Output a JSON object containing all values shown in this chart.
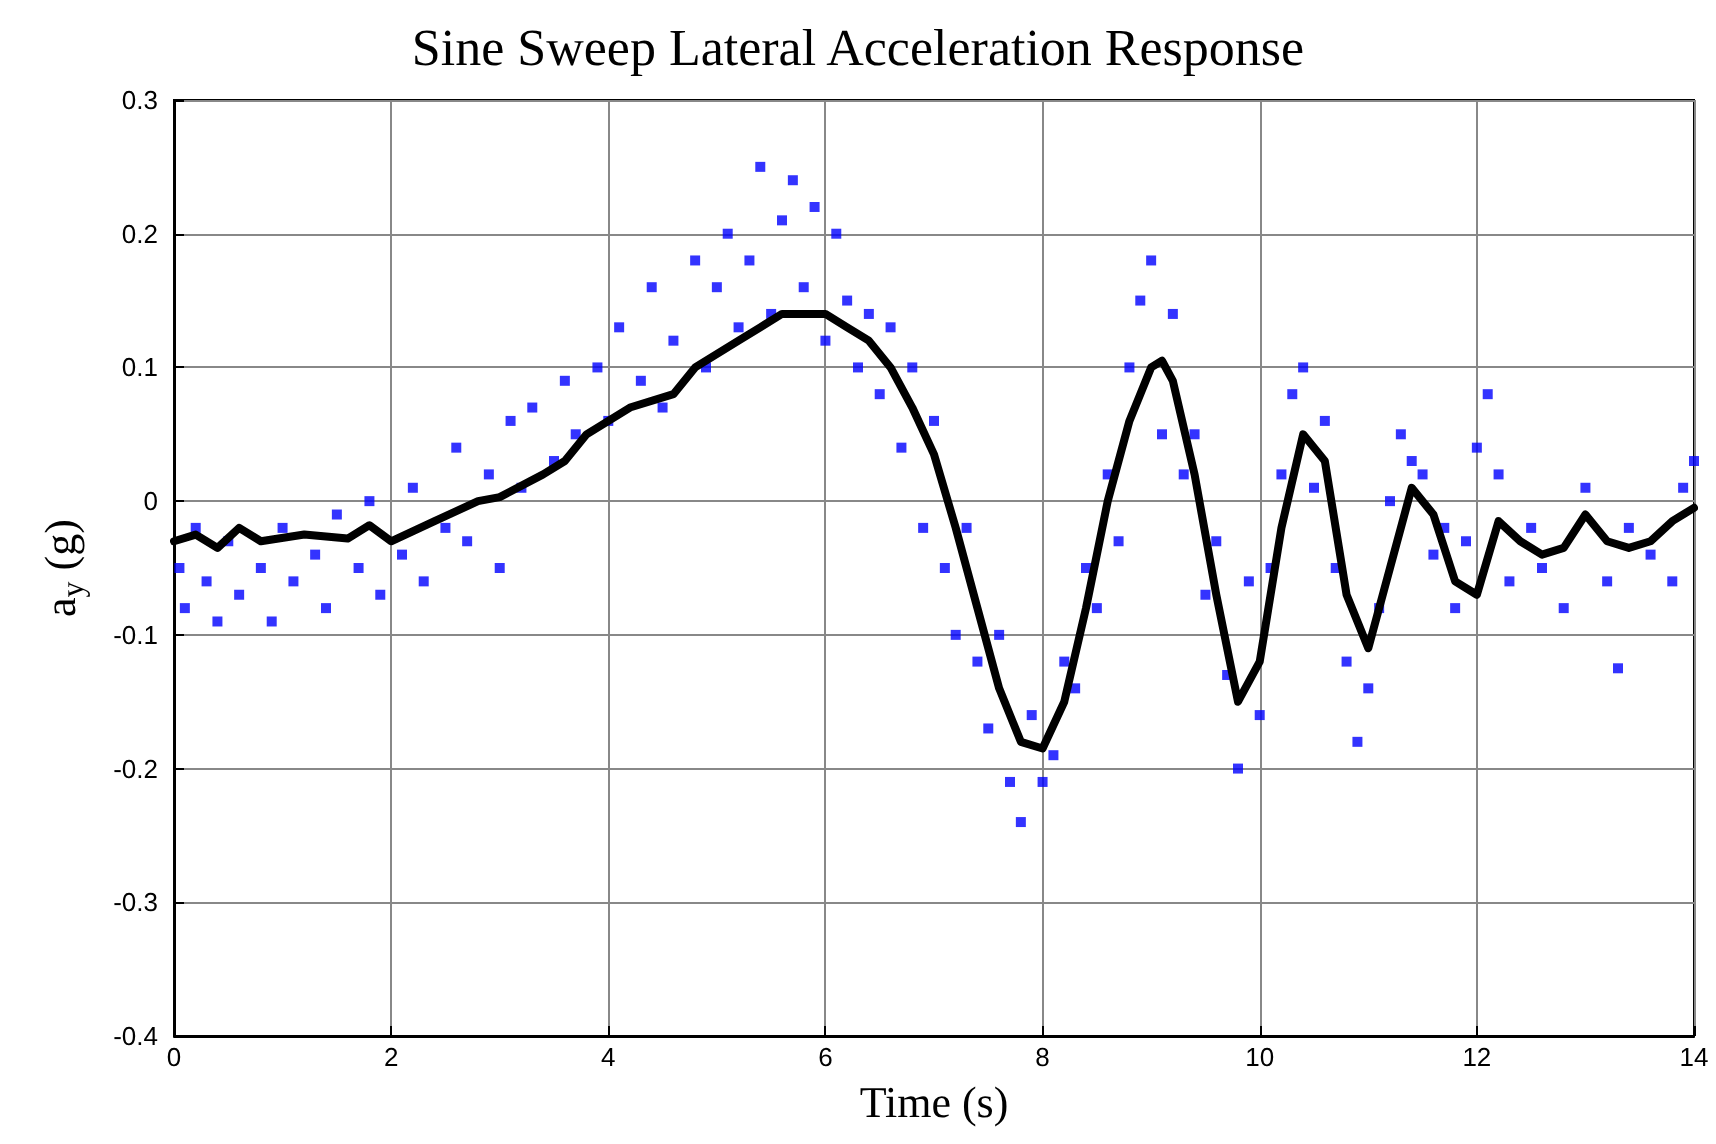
{
  "chart_data": {
    "type": "scatter",
    "title": "Sine Sweep Lateral Acceleration Response",
    "xlabel": "Time (s)",
    "ylabel": "a$_{y}$ (g)",
    "xlim": [
      0,
      14
    ],
    "xticks": [
      0,
      2,
      4,
      6,
      8,
      10,
      12,
      14
    ],
    "ylim": [
      -0.4,
      0.3
    ],
    "yticks": [
      -0.4,
      -0.3,
      -0.2,
      -0.1,
      0,
      0.1,
      0.2,
      0.3
    ],
    "grid": true,
    "series": [
      {
        "marker": "square",
        "color": "#0000ff",
        "x": [
          0.05,
          0.1,
          0.2,
          0.3,
          0.4,
          0.5,
          0.6,
          0.8,
          0.9,
          1.0,
          1.1,
          1.3,
          1.4,
          1.5,
          1.7,
          1.8,
          1.9,
          2.1,
          2.2,
          2.3,
          2.5,
          2.6,
          2.7,
          2.9,
          3.0,
          3.1,
          3.2,
          3.3,
          3.5,
          3.6,
          3.7,
          3.9,
          4.0,
          4.1,
          4.3,
          4.4,
          4.5,
          4.6,
          4.8,
          4.9,
          5.0,
          5.1,
          5.2,
          5.3,
          5.4,
          5.5,
          5.6,
          5.7,
          5.8,
          5.9,
          6.0,
          6.1,
          6.2,
          6.3,
          6.4,
          6.5,
          6.6,
          6.7,
          6.8,
          6.9,
          7.0,
          7.1,
          7.2,
          7.3,
          7.4,
          7.5,
          7.6,
          7.7,
          7.8,
          7.9,
          8.0,
          8.1,
          8.2,
          8.3,
          8.4,
          8.5,
          8.6,
          8.7,
          8.8,
          8.9,
          9.0,
          9.1,
          9.2,
          9.3,
          9.4,
          9.5,
          9.6,
          9.7,
          9.8,
          9.9,
          10.0,
          10.1,
          10.2,
          10.3,
          10.4,
          10.5,
          10.6,
          10.7,
          10.8,
          10.9,
          11.0,
          11.1,
          11.2,
          11.3,
          11.4,
          11.5,
          11.6,
          11.7,
          11.8,
          11.9,
          12.0,
          12.1,
          12.2,
          12.3,
          12.5,
          12.6,
          12.8,
          13.0,
          13.2,
          13.3,
          13.4,
          13.6,
          13.8,
          13.9,
          14.0
        ],
        "values": [
          -0.05,
          -0.08,
          -0.02,
          -0.06,
          -0.09,
          -0.03,
          -0.07,
          -0.05,
          -0.09,
          -0.02,
          -0.06,
          -0.04,
          -0.08,
          -0.01,
          -0.05,
          0,
          -0.07,
          -0.04,
          0.01,
          -0.06,
          -0.02,
          0.04,
          -0.03,
          0.02,
          -0.05,
          0.06,
          0.01,
          0.07,
          0.03,
          0.09,
          0.05,
          0.1,
          0.06,
          0.13,
          0.09,
          0.16,
          0.07,
          0.12,
          0.18,
          0.1,
          0.16,
          0.2,
          0.13,
          0.18,
          0.25,
          0.14,
          0.21,
          0.24,
          0.16,
          0.22,
          0.12,
          0.2,
          0.15,
          0.1,
          0.14,
          0.08,
          0.13,
          0.04,
          0.1,
          -0.02,
          0.06,
          -0.05,
          -0.1,
          -0.02,
          -0.12,
          -0.17,
          -0.1,
          -0.21,
          -0.24,
          -0.16,
          -0.21,
          -0.19,
          -0.12,
          -0.14,
          -0.05,
          -0.08,
          0.02,
          -0.03,
          0.1,
          0.15,
          0.18,
          0.05,
          0.14,
          0.02,
          0.05,
          -0.07,
          -0.03,
          -0.13,
          -0.2,
          -0.06,
          -0.16,
          -0.05,
          0.02,
          0.08,
          0.1,
          0.01,
          0.06,
          -0.05,
          -0.12,
          -0.18,
          -0.14,
          -0.08,
          0,
          0.05,
          0.03,
          0.02,
          -0.04,
          -0.02,
          -0.08,
          -0.03,
          0.04,
          0.08,
          0.02,
          -0.06,
          -0.02,
          -0.05,
          -0.08,
          0.01,
          -0.06,
          -0.125,
          -0.02,
          -0.04,
          -0.06,
          0.01,
          0.03
        ]
      },
      {
        "type": "line",
        "marker": "none",
        "line_style": "solid",
        "color": "#000000",
        "x": [
          0,
          0.2,
          0.4,
          0.6,
          0.8,
          1.2,
          1.6,
          1.8,
          2.0,
          2.4,
          2.8,
          3.0,
          3.4,
          3.6,
          3.8,
          4.2,
          4.6,
          4.8,
          5.2,
          5.4,
          5.6,
          6.0,
          6.2,
          6.4,
          6.6,
          6.8,
          7.0,
          7.2,
          7.4,
          7.6,
          7.8,
          8.0,
          8.2,
          8.4,
          8.6,
          8.8,
          9.0,
          9.1,
          9.2,
          9.4,
          9.6,
          9.8,
          10.0,
          10.2,
          10.4,
          10.6,
          10.8,
          11.0,
          11.2,
          11.4,
          11.6,
          11.8,
          12.0,
          12.2,
          12.4,
          12.6,
          12.8,
          13.0,
          13.2,
          13.4,
          13.6,
          13.8,
          14.0
        ],
        "values": [
          -0.03,
          -0.025,
          -0.035,
          -0.02,
          -0.03,
          -0.025,
          -0.028,
          -0.018,
          -0.03,
          -0.015,
          0,
          0.003,
          0.02,
          0.03,
          0.05,
          0.07,
          0.08,
          0.1,
          0.12,
          0.13,
          0.14,
          0.14,
          0.13,
          0.12,
          0.1,
          0.07,
          0.035,
          -0.02,
          -0.08,
          -0.14,
          -0.18,
          -0.185,
          -0.15,
          -0.08,
          0,
          0.06,
          0.1,
          0.105,
          0.09,
          0.02,
          -0.07,
          -0.15,
          -0.12,
          -0.02,
          0.05,
          0.03,
          -0.07,
          -0.11,
          -0.05,
          0.01,
          -0.01,
          -0.06,
          -0.07,
          -0.015,
          -0.03,
          -0.04,
          -0.035,
          -0.01,
          -0.03,
          -0.035,
          -0.03,
          -0.015,
          -0.005
        ]
      }
    ]
  }
}
